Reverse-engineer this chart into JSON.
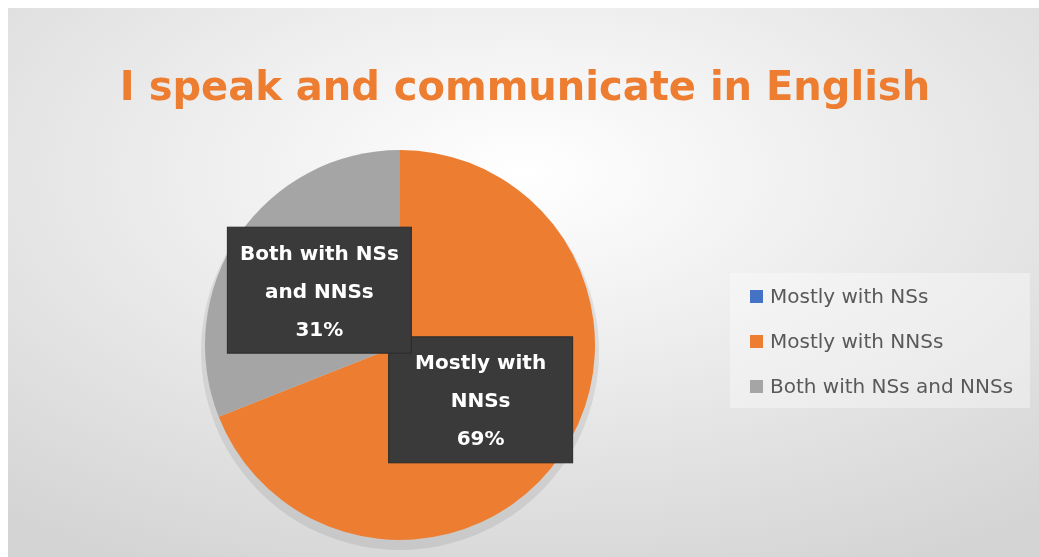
{
  "chart_data": {
    "type": "pie",
    "title": "I speak and communicate in English",
    "categories": [
      "Mostly with NSs",
      "Mostly with NNSs",
      "Both with NSs and NNSs"
    ],
    "values": [
      0,
      69,
      31
    ],
    "colors": [
      "#4472c4",
      "#ed7d31",
      "#a5a5a5"
    ],
    "value_labels": [
      null,
      "69%",
      "31%"
    ],
    "legend": "right"
  }
}
